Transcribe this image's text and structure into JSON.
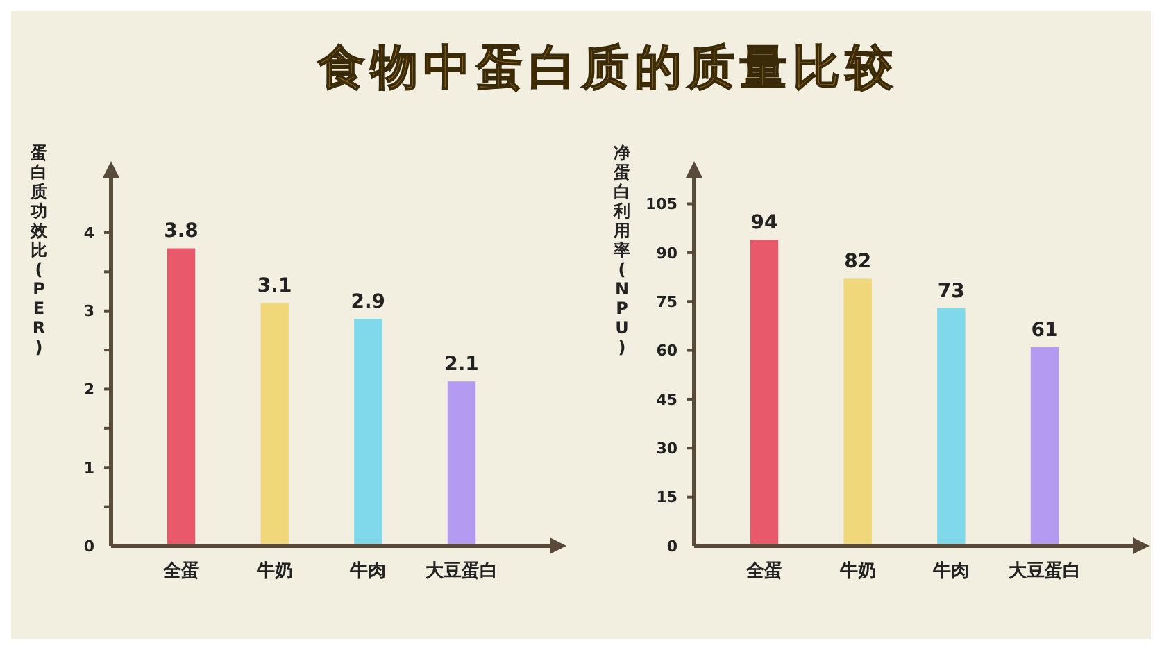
{
  "chart_data": [
    {
      "type": "bar",
      "title": "食物中蛋白质的质量比较",
      "ylabel": "蛋白质功效比(PER)",
      "categories": [
        "全蛋",
        "牛奶",
        "牛肉",
        "大豆蛋白"
      ],
      "values": [
        3.8,
        3.1,
        2.9,
        2.1
      ],
      "colors": [
        "#e8596b",
        "#f0d77a",
        "#7fd9ea",
        "#b49af0"
      ],
      "ylim": [
        0,
        4.7
      ],
      "yticks": [
        0,
        {
          "value": 0.5,
          "label": null
        },
        1,
        {
          "value": 1.5,
          "label": null
        },
        2,
        {
          "value": 2.5,
          "label": null
        },
        3,
        {
          "value": 3.5,
          "label": null
        },
        4
      ],
      "data_labels": true
    },
    {
      "type": "bar",
      "ylabel": "净蛋白利用率(NPU)",
      "categories": [
        "全蛋",
        "牛奶",
        "牛肉",
        "大豆蛋白"
      ],
      "values": [
        94,
        82,
        73,
        61
      ],
      "colors": [
        "#e8596b",
        "#f0d77a",
        "#7fd9ea",
        "#b49af0"
      ],
      "ylim": [
        0,
        113
      ],
      "yticks": [
        0,
        15,
        30,
        45,
        60,
        75,
        90,
        105
      ],
      "data_labels": true
    }
  ]
}
